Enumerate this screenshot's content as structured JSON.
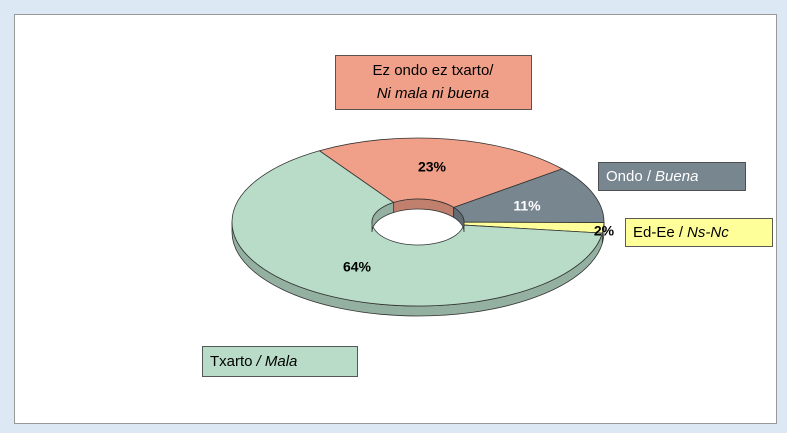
{
  "chart_data": {
    "type": "donut3d",
    "categories": [
      {
        "text": "Ez ondo ez txarto/",
        "italic": "Ni mala ni buena"
      },
      {
        "text": "Ondo /",
        "italic": "Buena"
      },
      {
        "text": "Ed-Ee /",
        "italic": "Ns-Nc"
      },
      {
        "text": "Txarto",
        "italic": "/ Mala"
      }
    ],
    "values": [
      23,
      11,
      2,
      64
    ],
    "value_labels": [
      "23%",
      "11%",
      "2%",
      "64%"
    ],
    "colors": [
      "#f0a088",
      "#788690",
      "#ffff99",
      "#b8dcc8"
    ]
  }
}
